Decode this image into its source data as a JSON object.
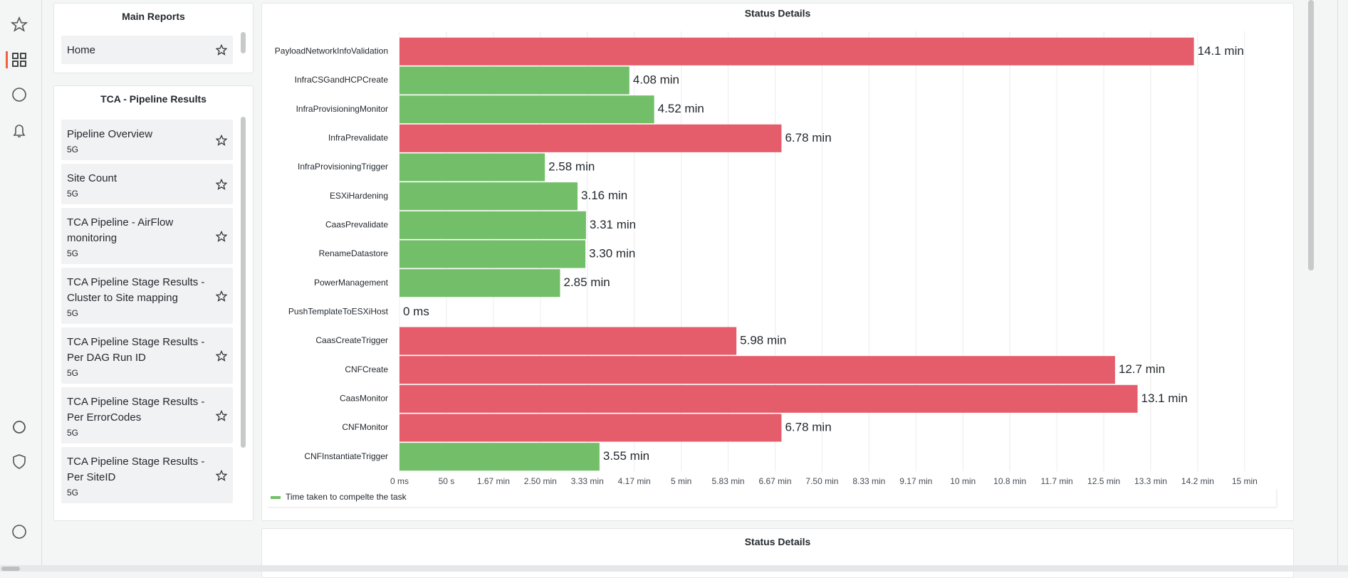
{
  "main_reports": {
    "title": "Main Reports",
    "items": [
      {
        "label": "Home"
      }
    ]
  },
  "pipeline_results": {
    "title": "TCA - Pipeline Results",
    "items": [
      {
        "label": "Pipeline Overview",
        "tag": "5G"
      },
      {
        "label": "Site Count",
        "tag": "5G"
      },
      {
        "label": "TCA Pipeline - AirFlow monitoring",
        "tag": "5G"
      },
      {
        "label": "TCA Pipeline Stage Results - Cluster to Site mapping",
        "tag": "5G"
      },
      {
        "label": "TCA Pipeline Stage Results - Per DAG Run ID",
        "tag": "5G"
      },
      {
        "label": "TCA Pipeline Stage Results - Per ErrorCodes",
        "tag": "5G"
      },
      {
        "label": "TCA Pipeline Stage Results - Per SiteID",
        "tag": "5G"
      }
    ]
  },
  "chart_data": {
    "type": "hbar",
    "title": "Status Details",
    "categories": [
      "PayloadNetworkInfoValidation",
      "InfraCSGandHCPCreate",
      "InfraProvisioningMonitor",
      "InfraPrevalidate",
      "InfraProvisioningTrigger",
      "ESXiHardening",
      "CaasPrevalidate",
      "RenameDatastore",
      "PowerManagement",
      "PushTemplateToESXiHost",
      "CaasCreateTrigger",
      "CNFCreate",
      "CaasMonitor",
      "CNFMonitor",
      "CNFInstantiateTrigger"
    ],
    "series": [
      {
        "name": "Time taken to compelte the task",
        "color": "#73bf69",
        "values": [
          846,
          244.8,
          271.2,
          406.8,
          154.8,
          189.6,
          198.6,
          198,
          171,
          0,
          358.8,
          762,
          786,
          406.8,
          213
        ],
        "value_labels": [
          "14.1 min",
          "4.08 min",
          "4.52 min",
          "6.78 min",
          "2.58 min",
          "3.16 min",
          "3.31 min",
          "3.30 min",
          "2.85 min",
          "0 ms",
          "5.98 min",
          "12.7 min",
          "13.1 min",
          "6.78 min",
          "3.55 min"
        ],
        "bar_colors": [
          "#e55d6b",
          "#73bf69",
          "#73bf69",
          "#e55d6b",
          "#73bf69",
          "#73bf69",
          "#73bf69",
          "#73bf69",
          "#73bf69",
          "#73bf69",
          "#e55d6b",
          "#e55d6b",
          "#e55d6b",
          "#e55d6b",
          "#73bf69"
        ]
      }
    ],
    "xlim": [
      0,
      935
    ],
    "xticks": [
      {
        "value": 0,
        "label": "0 ms"
      },
      {
        "value": 50,
        "label": "50 s"
      },
      {
        "value": 100,
        "label": "1.67 min"
      },
      {
        "value": 150,
        "label": "2.50 min"
      },
      {
        "value": 200,
        "label": "3.33 min"
      },
      {
        "value": 250,
        "label": "4.17 min"
      },
      {
        "value": 300,
        "label": "5 min"
      },
      {
        "value": 350,
        "label": "5.83 min"
      },
      {
        "value": 400,
        "label": "6.67 min"
      },
      {
        "value": 450,
        "label": "7.50 min"
      },
      {
        "value": 500,
        "label": "8.33 min"
      },
      {
        "value": 550,
        "label": "9.17 min"
      },
      {
        "value": 600,
        "label": "10 min"
      },
      {
        "value": 650,
        "label": "10.8 min"
      },
      {
        "value": 700,
        "label": "11.7 min"
      },
      {
        "value": 750,
        "label": "12.5 min"
      },
      {
        "value": 800,
        "label": "13.3 min"
      },
      {
        "value": 850,
        "label": "14.2 min"
      },
      {
        "value": 900,
        "label": "15 min"
      }
    ],
    "grid": true
  },
  "status_panel_2": {
    "title": "Status Details"
  }
}
